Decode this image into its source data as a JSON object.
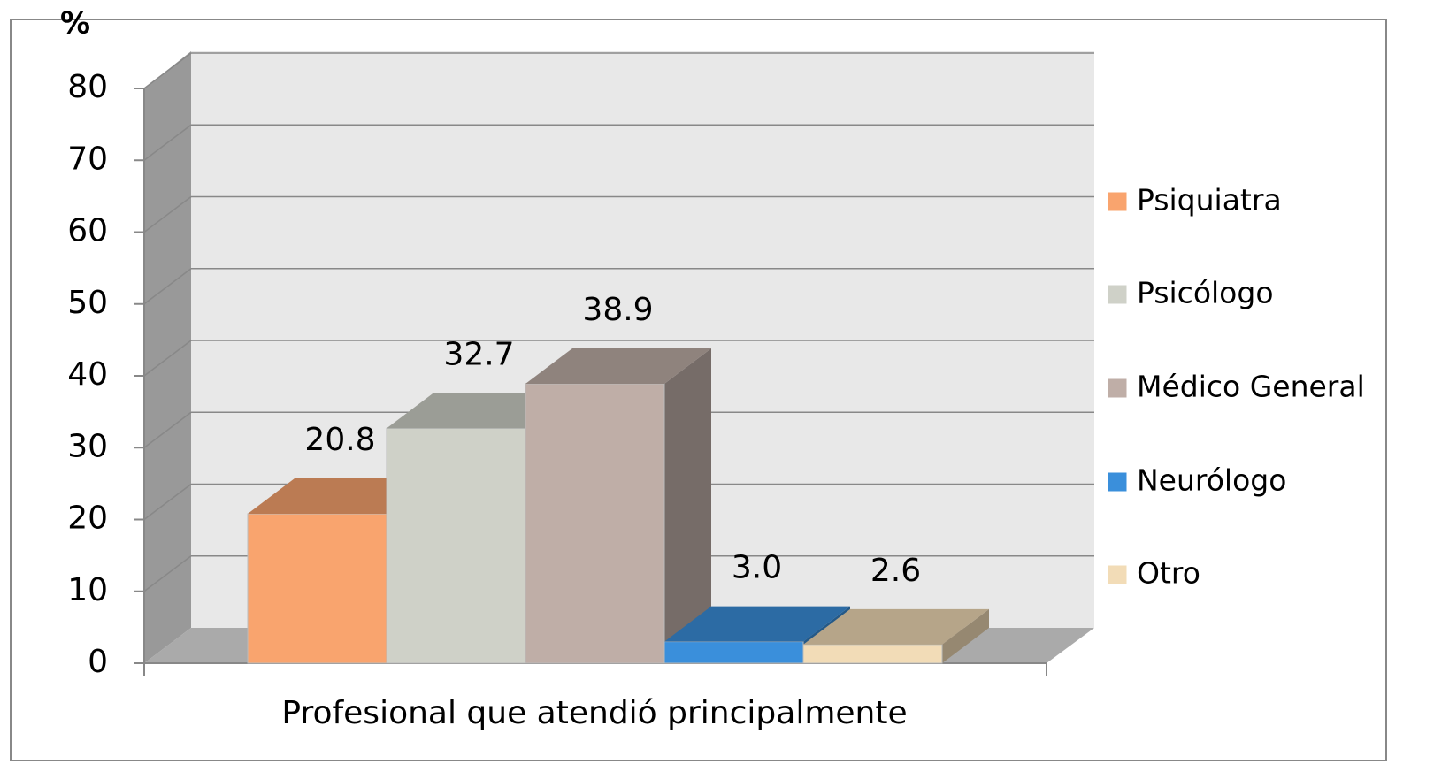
{
  "chart_data": {
    "type": "bar3d",
    "y_label": "%",
    "x_label": "Profesional que atendió principalmente",
    "ylim": [
      0,
      80
    ],
    "yticks": [
      0,
      10,
      20,
      30,
      40,
      50,
      60,
      70,
      80
    ],
    "grid": true,
    "legend": "right",
    "series": [
      {
        "name": "Psiquiatra",
        "color": "#F9A46E",
        "values": [
          20.8
        ]
      },
      {
        "name": "Psicólogo",
        "color": "#CFD1C8",
        "values": [
          32.7
        ]
      },
      {
        "name": "Médico General",
        "color": "#BFAEA7",
        "values": [
          38.9
        ]
      },
      {
        "name": "Neurólogo",
        "color": "#3A8FDB",
        "values": [
          3.0
        ],
        "value_labels": [
          "3.0"
        ]
      },
      {
        "name": "Otro",
        "color": "#F2DCB7",
        "values": [
          2.6
        ]
      }
    ]
  }
}
